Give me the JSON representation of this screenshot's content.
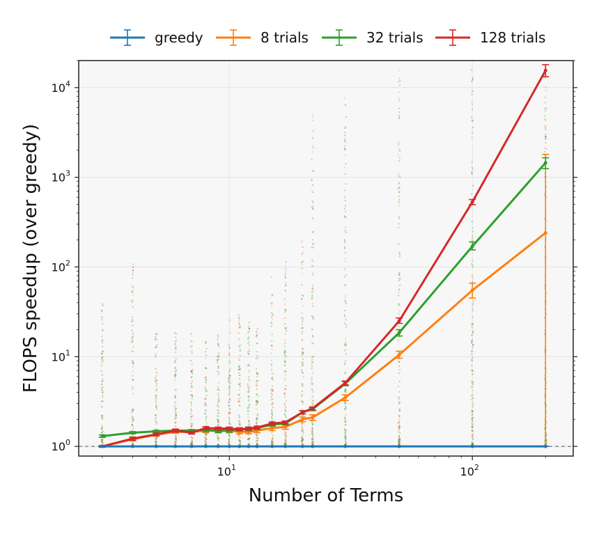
{
  "chart_data": {
    "type": "line",
    "title": "",
    "xlabel": "Number of Terms",
    "ylabel": "FLOPS speedup (over greedy)",
    "xscale": "log",
    "yscale": "log",
    "xlim": [
      2.4,
      260
    ],
    "ylim": [
      0.78,
      20000
    ],
    "grid": true,
    "legend_position": "top",
    "x": [
      3,
      4,
      5,
      6,
      7,
      8,
      9,
      10,
      11,
      12,
      13,
      15,
      17,
      20,
      22,
      30,
      50,
      100,
      200
    ],
    "x_ticks": [
      {
        "value": 10,
        "base": "10",
        "exp": "1"
      },
      {
        "value": 100,
        "base": "10",
        "exp": "2"
      }
    ],
    "y_ticks": [
      {
        "value": 1,
        "base": "10",
        "exp": "0"
      },
      {
        "value": 10,
        "base": "10",
        "exp": "1"
      },
      {
        "value": 100,
        "base": "10",
        "exp": "2"
      },
      {
        "value": 1000,
        "base": "10",
        "exp": "3"
      },
      {
        "value": 10000,
        "base": "10",
        "exp": "4"
      }
    ],
    "reference_line": 1,
    "series": [
      {
        "name": "greedy",
        "color": "#1f77b4",
        "values": [
          1,
          1,
          1,
          1,
          1,
          1,
          1,
          1,
          1,
          1,
          1,
          1,
          1,
          1,
          1,
          1,
          1,
          1,
          1
        ],
        "err_low": [
          1,
          1,
          1,
          1,
          1,
          1,
          1,
          1,
          1,
          1,
          1,
          1,
          1,
          1,
          1,
          1,
          1,
          1,
          1
        ],
        "err_high": [
          1,
          1,
          1,
          1,
          1,
          1,
          1,
          1,
          1,
          1,
          1,
          1,
          1,
          1,
          1,
          1,
          1,
          1,
          1
        ]
      },
      {
        "name": "8 trials",
        "color": "#ff7f0e",
        "values": [
          1.0,
          1.2,
          1.35,
          1.45,
          1.45,
          1.5,
          1.5,
          1.5,
          1.45,
          1.45,
          1.5,
          1.6,
          1.65,
          2.0,
          2.1,
          3.5,
          10.5,
          55,
          240
        ],
        "err_low": [
          0.98,
          1.15,
          1.3,
          1.4,
          1.4,
          1.42,
          1.42,
          1.42,
          1.38,
          1.38,
          1.42,
          1.5,
          1.55,
          1.88,
          1.95,
          3.25,
          9.6,
          45,
          1
        ],
        "err_high": [
          1.02,
          1.25,
          1.4,
          1.5,
          1.52,
          1.58,
          1.58,
          1.58,
          1.52,
          1.52,
          1.58,
          1.7,
          1.75,
          2.12,
          2.25,
          3.75,
          11.5,
          66,
          1800
        ]
      },
      {
        "name": "32 trials",
        "color": "#2ca02c",
        "values": [
          1.3,
          1.42,
          1.47,
          1.5,
          1.5,
          1.52,
          1.48,
          1.5,
          1.55,
          1.55,
          1.6,
          1.75,
          1.8,
          2.4,
          2.6,
          5.0,
          18.5,
          170,
          1450
        ],
        "err_low": [
          1.26,
          1.38,
          1.43,
          1.46,
          1.46,
          1.46,
          1.42,
          1.44,
          1.49,
          1.49,
          1.54,
          1.68,
          1.73,
          2.3,
          2.5,
          4.75,
          17,
          155,
          1250
        ],
        "err_high": [
          1.34,
          1.46,
          1.51,
          1.54,
          1.54,
          1.58,
          1.54,
          1.56,
          1.61,
          1.61,
          1.66,
          1.82,
          1.87,
          2.5,
          2.7,
          5.25,
          20,
          190,
          1650
        ]
      },
      {
        "name": "128 trials",
        "color": "#d62728",
        "values": [
          1.0,
          1.22,
          1.36,
          1.5,
          1.42,
          1.6,
          1.58,
          1.58,
          1.55,
          1.58,
          1.62,
          1.8,
          1.85,
          2.4,
          2.65,
          5.1,
          25,
          530,
          15500
        ],
        "err_low": [
          0.98,
          1.17,
          1.31,
          1.44,
          1.37,
          1.54,
          1.52,
          1.52,
          1.49,
          1.52,
          1.56,
          1.73,
          1.78,
          2.3,
          2.55,
          4.85,
          23.5,
          495,
          13200
        ],
        "err_high": [
          1.02,
          1.27,
          1.41,
          1.56,
          1.47,
          1.66,
          1.64,
          1.64,
          1.61,
          1.64,
          1.68,
          1.87,
          1.92,
          2.5,
          2.75,
          5.35,
          27,
          565,
          18000
        ]
      }
    ],
    "scatter_max": [
      40,
      110,
      28,
      22,
      18,
      15,
      20,
      26,
      30,
      28,
      22,
      80,
      120,
      200,
      5000,
      8000,
      16000,
      18000,
      18000
    ]
  }
}
